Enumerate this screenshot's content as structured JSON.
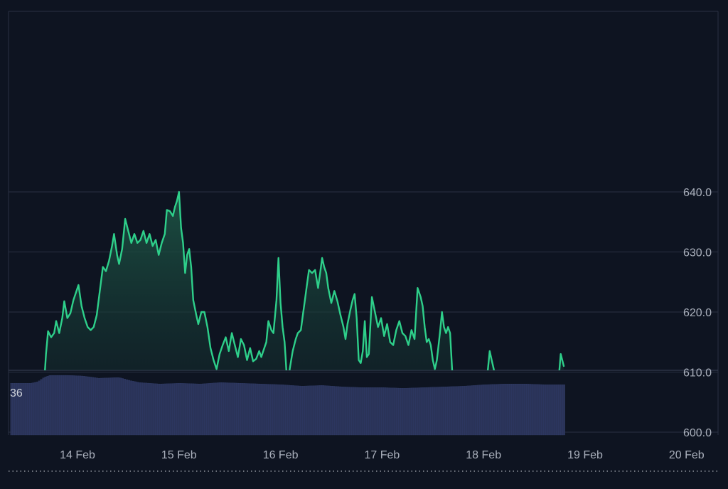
{
  "colors": {
    "background": "#0e1421",
    "grid": "#2a3142",
    "line": "#2ecf8a",
    "area_top": "#1e5a48",
    "area_bottom": "#0f1a22",
    "volume": "#2a3358",
    "volume_edge": "#34406e",
    "tick_label": "#aab0bc",
    "baseline": "#c8ccd4",
    "volume_label": "#d0d4dc"
  },
  "chart_data": [
    {
      "type": "area",
      "x_unit": "days from 14 Feb",
      "y_ticks": [
        "640.0",
        "630.0",
        "620.0",
        "610.0",
        "600.0"
      ],
      "y_tick_values": [
        640,
        630,
        620,
        610,
        600
      ],
      "x_ticks": [
        "14 Feb",
        "15 Feb",
        "16 Feb",
        "17 Feb",
        "18 Feb",
        "19 Feb",
        "20 Feb"
      ],
      "ylim": [
        587,
        651
      ],
      "baseline": 593.5,
      "grid": true,
      "points": [
        [
          -0.66,
          593.5
        ],
        [
          -0.64,
          599.5
        ],
        [
          -0.62,
          597.0
        ],
        [
          -0.6,
          602.8
        ],
        [
          -0.57,
          600.5
        ],
        [
          -0.54,
          602.0
        ],
        [
          -0.51,
          600.0
        ],
        [
          -0.48,
          598.0
        ],
        [
          -0.45,
          601.5
        ],
        [
          -0.42,
          598.5
        ],
        [
          -0.39,
          597.0
        ],
        [
          -0.37,
          602.0
        ],
        [
          -0.34,
          605.0
        ],
        [
          -0.31,
          613.0
        ],
        [
          -0.29,
          616.8
        ],
        [
          -0.26,
          615.8
        ],
        [
          -0.23,
          616.5
        ],
        [
          -0.21,
          618.5
        ],
        [
          -0.18,
          616.5
        ],
        [
          -0.15,
          619.0
        ],
        [
          -0.13,
          621.8
        ],
        [
          -0.1,
          619.0
        ],
        [
          -0.07,
          619.8
        ],
        [
          -0.04,
          622.0
        ],
        [
          -0.01,
          623.5
        ],
        [
          0.01,
          624.5
        ],
        [
          0.04,
          621.0
        ],
        [
          0.07,
          619.0
        ],
        [
          0.1,
          617.5
        ],
        [
          0.13,
          617.0
        ],
        [
          0.16,
          617.5
        ],
        [
          0.19,
          619.5
        ],
        [
          0.22,
          623.5
        ],
        [
          0.25,
          627.5
        ],
        [
          0.28,
          626.8
        ],
        [
          0.31,
          628.5
        ],
        [
          0.34,
          631.0
        ],
        [
          0.36,
          633.0
        ],
        [
          0.39,
          629.5
        ],
        [
          0.41,
          628.0
        ],
        [
          0.44,
          630.5
        ],
        [
          0.47,
          635.5
        ],
        [
          0.5,
          633.5
        ],
        [
          0.53,
          631.5
        ],
        [
          0.56,
          633.0
        ],
        [
          0.59,
          631.5
        ],
        [
          0.62,
          632.0
        ],
        [
          0.65,
          633.5
        ],
        [
          0.68,
          631.5
        ],
        [
          0.71,
          633.0
        ],
        [
          0.74,
          631.0
        ],
        [
          0.77,
          632.0
        ],
        [
          0.8,
          629.5
        ],
        [
          0.83,
          631.5
        ],
        [
          0.86,
          633.0
        ],
        [
          0.88,
          637.0
        ],
        [
          0.91,
          636.8
        ],
        [
          0.94,
          636.0
        ],
        [
          0.96,
          637.5
        ],
        [
          0.98,
          638.5
        ],
        [
          1.0,
          640.0
        ],
        [
          1.02,
          634.0
        ],
        [
          1.04,
          631.5
        ],
        [
          1.06,
          626.5
        ],
        [
          1.08,
          629.5
        ],
        [
          1.1,
          630.5
        ],
        [
          1.12,
          627.5
        ],
        [
          1.14,
          622.0
        ],
        [
          1.17,
          619.5
        ],
        [
          1.19,
          618.0
        ],
        [
          1.22,
          620.0
        ],
        [
          1.25,
          620.0
        ],
        [
          1.28,
          617.5
        ],
        [
          1.31,
          614.0
        ],
        [
          1.34,
          612.0
        ],
        [
          1.37,
          610.5
        ],
        [
          1.4,
          613.0
        ],
        [
          1.43,
          614.5
        ],
        [
          1.46,
          615.8
        ],
        [
          1.49,
          613.5
        ],
        [
          1.52,
          616.5
        ],
        [
          1.55,
          614.5
        ],
        [
          1.58,
          612.5
        ],
        [
          1.61,
          615.5
        ],
        [
          1.64,
          614.5
        ],
        [
          1.67,
          612.0
        ],
        [
          1.7,
          614.0
        ],
        [
          1.73,
          611.8
        ],
        [
          1.76,
          612.2
        ],
        [
          1.79,
          613.5
        ],
        [
          1.81,
          612.5
        ],
        [
          1.83,
          613.5
        ],
        [
          1.86,
          615.0
        ],
        [
          1.88,
          618.5
        ],
        [
          1.91,
          617.0
        ],
        [
          1.93,
          616.5
        ],
        [
          1.96,
          622.0
        ],
        [
          1.98,
          629.0
        ],
        [
          2.0,
          621.5
        ],
        [
          2.02,
          617.5
        ],
        [
          2.04,
          615.0
        ],
        [
          2.05,
          612.5
        ],
        [
          2.07,
          606.5
        ],
        [
          2.09,
          610.5
        ],
        [
          2.12,
          613.5
        ],
        [
          2.15,
          615.5
        ],
        [
          2.17,
          616.5
        ],
        [
          2.2,
          617.0
        ],
        [
          2.22,
          619.5
        ],
        [
          2.24,
          622.0
        ],
        [
          2.26,
          624.5
        ],
        [
          2.28,
          627.0
        ],
        [
          2.31,
          626.5
        ],
        [
          2.34,
          627.0
        ],
        [
          2.37,
          624.0
        ],
        [
          2.39,
          626.5
        ],
        [
          2.41,
          629.0
        ],
        [
          2.43,
          627.5
        ],
        [
          2.45,
          626.5
        ],
        [
          2.47,
          624.0
        ],
        [
          2.5,
          621.5
        ],
        [
          2.53,
          623.5
        ],
        [
          2.56,
          621.8
        ],
        [
          2.59,
          619.5
        ],
        [
          2.62,
          617.5
        ],
        [
          2.64,
          615.5
        ],
        [
          2.66,
          618.0
        ],
        [
          2.69,
          620.5
        ],
        [
          2.71,
          622.0
        ],
        [
          2.73,
          623.0
        ],
        [
          2.75,
          619.0
        ],
        [
          2.77,
          612.0
        ],
        [
          2.79,
          611.5
        ],
        [
          2.81,
          613.5
        ],
        [
          2.83,
          618.5
        ],
        [
          2.85,
          612.5
        ],
        [
          2.87,
          613.0
        ],
        [
          2.9,
          622.5
        ],
        [
          2.93,
          620.0
        ],
        [
          2.96,
          617.5
        ],
        [
          2.99,
          619.0
        ],
        [
          3.02,
          616.0
        ],
        [
          3.05,
          618.0
        ],
        [
          3.08,
          615.0
        ],
        [
          3.11,
          614.5
        ],
        [
          3.14,
          617.0
        ],
        [
          3.17,
          618.5
        ],
        [
          3.2,
          616.5
        ],
        [
          3.23,
          616.0
        ],
        [
          3.26,
          614.5
        ],
        [
          3.29,
          617.0
        ],
        [
          3.32,
          615.5
        ],
        [
          3.35,
          624.0
        ],
        [
          3.38,
          622.5
        ],
        [
          3.4,
          621.0
        ],
        [
          3.42,
          617.5
        ],
        [
          3.44,
          615.0
        ],
        [
          3.46,
          615.5
        ],
        [
          3.48,
          614.5
        ],
        [
          3.5,
          612.0
        ],
        [
          3.52,
          610.5
        ],
        [
          3.54,
          612.0
        ],
        [
          3.57,
          616.5
        ],
        [
          3.59,
          620.0
        ],
        [
          3.61,
          617.5
        ],
        [
          3.63,
          616.5
        ],
        [
          3.65,
          617.5
        ],
        [
          3.67,
          616.5
        ],
        [
          3.69,
          610.5
        ],
        [
          3.71,
          604.5
        ],
        [
          3.73,
          603.5
        ],
        [
          3.76,
          605.0
        ],
        [
          3.79,
          603.8
        ],
        [
          3.82,
          605.0
        ],
        [
          3.85,
          603.8
        ],
        [
          3.88,
          605.5
        ],
        [
          3.91,
          606.0
        ],
        [
          3.94,
          606.5
        ],
        [
          3.97,
          608.5
        ],
        [
          4.0,
          609.5
        ],
        [
          4.02,
          608.0
        ],
        [
          4.04,
          610.0
        ],
        [
          4.06,
          613.5
        ],
        [
          4.08,
          612.0
        ],
        [
          4.1,
          610.5
        ],
        [
          4.12,
          608.5
        ],
        [
          4.14,
          606.5
        ],
        [
          4.17,
          607.5
        ],
        [
          4.2,
          606.0
        ],
        [
          4.23,
          605.5
        ],
        [
          4.26,
          604.0
        ],
        [
          4.29,
          602.5
        ],
        [
          4.31,
          597.5
        ],
        [
          4.33,
          600.0
        ],
        [
          4.35,
          602.5
        ],
        [
          4.37,
          601.0
        ],
        [
          4.39,
          599.0
        ],
        [
          4.41,
          600.0
        ],
        [
          4.43,
          602.5
        ],
        [
          4.46,
          603.5
        ],
        [
          4.49,
          605.5
        ],
        [
          4.52,
          607.5
        ],
        [
          4.54,
          608.5
        ],
        [
          4.56,
          606.5
        ],
        [
          4.58,
          607.0
        ],
        [
          4.61,
          609.5
        ],
        [
          4.63,
          607.5
        ],
        [
          4.66,
          607.0
        ],
        [
          4.69,
          607.5
        ],
        [
          4.72,
          608.0
        ],
        [
          4.74,
          609.0
        ],
        [
          4.76,
          613.0
        ],
        [
          4.79,
          611.0
        ]
      ]
    },
    {
      "type": "bar",
      "label": "36",
      "ylim": [
        0,
        90
      ],
      "volumes": [
        [
          -0.66,
          72
        ],
        [
          -0.55,
          72
        ],
        [
          -0.47,
          72
        ],
        [
          -0.4,
          74
        ],
        [
          -0.34,
          80
        ],
        [
          -0.28,
          83
        ],
        [
          -0.1,
          83
        ],
        [
          0.05,
          82
        ],
        [
          0.2,
          79
        ],
        [
          0.4,
          80
        ],
        [
          0.5,
          76
        ],
        [
          0.6,
          73
        ],
        [
          0.8,
          71
        ],
        [
          1.0,
          72
        ],
        [
          1.2,
          71
        ],
        [
          1.4,
          73
        ],
        [
          1.6,
          72
        ],
        [
          1.8,
          71
        ],
        [
          2.0,
          70
        ],
        [
          2.2,
          68
        ],
        [
          2.4,
          69
        ],
        [
          2.6,
          67
        ],
        [
          2.8,
          66
        ],
        [
          3.0,
          66
        ],
        [
          3.2,
          65
        ],
        [
          3.4,
          66
        ],
        [
          3.6,
          67
        ],
        [
          3.8,
          68
        ],
        [
          4.0,
          70
        ],
        [
          4.2,
          71
        ],
        [
          4.4,
          71
        ],
        [
          4.6,
          70
        ],
        [
          4.79,
          70
        ]
      ]
    }
  ]
}
